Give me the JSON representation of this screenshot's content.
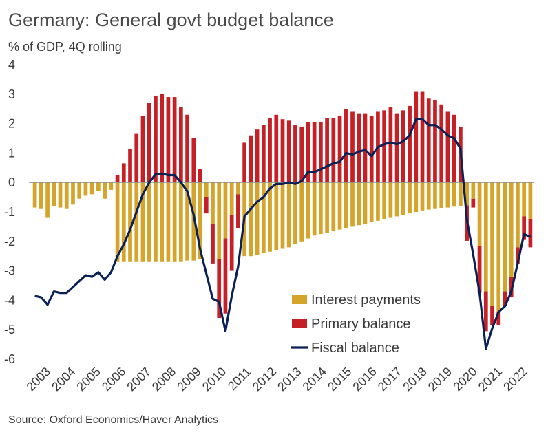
{
  "chart_data": {
    "type": "bar",
    "title": "Germany: General govt budget balance",
    "subtitle": "% of GDP, 4Q rolling",
    "source": "Source: Oxford Economics/Haver Analytics",
    "ylim": [
      -6,
      4
    ],
    "yticks": [
      "4",
      "3",
      "2",
      "1",
      "0",
      "-1",
      "-2",
      "-3",
      "-4",
      "-5",
      "-6"
    ],
    "ytick_values": [
      4,
      3,
      2,
      1,
      0,
      -1,
      -2,
      -3,
      -4,
      -5,
      -6
    ],
    "year_labels": [
      "2003",
      "2004",
      "2005",
      "2006",
      "2007",
      "2008",
      "2009",
      "2010",
      "2011",
      "2012",
      "2013",
      "2014",
      "2015",
      "2016",
      "2017",
      "2018",
      "2019",
      "2020",
      "2021",
      "2022"
    ],
    "legend": {
      "interest": "Interest payments",
      "primary": "Primary balance",
      "fiscal": "Fiscal balance"
    },
    "colors": {
      "interest": "#d4a52a",
      "primary": "#c42026",
      "fiscal": "#0b2155"
    },
    "series": [
      {
        "name": "Interest payments",
        "stack": "bar",
        "values": [
          -0.85,
          -0.9,
          -1.2,
          -0.8,
          -0.85,
          -0.9,
          -0.75,
          -0.55,
          -0.45,
          -0.4,
          -0.3,
          -0.55,
          -0.25,
          -2.7,
          -2.7,
          -2.7,
          -2.7,
          -2.7,
          -2.7,
          -2.7,
          -2.7,
          -2.7,
          -2.7,
          -2.7,
          -2.65,
          -2.65,
          -2.6,
          -0.5,
          -1.4,
          -2.6,
          -1.9,
          -1.1,
          -0.4,
          -2.5,
          -2.5,
          -2.45,
          -2.4,
          -2.35,
          -2.3,
          -2.25,
          -2.2,
          -2.1,
          -2.0,
          -1.9,
          -1.8,
          -1.75,
          -1.7,
          -1.65,
          -1.6,
          -1.55,
          -1.5,
          -1.45,
          -1.4,
          -1.35,
          -1.3,
          -1.25,
          -1.2,
          -1.15,
          -1.1,
          -1.05,
          -1.0,
          -0.95,
          -0.92,
          -0.9,
          -0.88,
          -0.85,
          -0.82,
          -0.8,
          -0.78,
          -0.55,
          -2.15,
          -3.7,
          -4.2,
          -4.4,
          -3.7,
          -3.2,
          -2.2,
          -1.15,
          -1.25
        ]
      },
      {
        "name": "Primary balance",
        "stack": "bar",
        "values": [
          0,
          0,
          0,
          0,
          0,
          0,
          0,
          0,
          0,
          0,
          0,
          0,
          0,
          0.25,
          0.65,
          1.15,
          1.65,
          2.25,
          2.7,
          2.95,
          3.0,
          2.9,
          2.9,
          2.55,
          2.3,
          1.5,
          0.45,
          -0.55,
          -1.35,
          -2.0,
          -2.55,
          -1.9,
          -1.15,
          1.35,
          1.6,
          1.8,
          1.95,
          2.2,
          2.3,
          2.15,
          2.1,
          1.95,
          1.9,
          2.05,
          2.05,
          2.05,
          2.2,
          2.2,
          2.25,
          2.5,
          2.4,
          2.35,
          2.35,
          2.25,
          2.4,
          2.45,
          2.55,
          2.35,
          2.45,
          2.6,
          3.1,
          3.1,
          2.85,
          2.8,
          2.65,
          2.4,
          2.3,
          1.9,
          -1.2,
          -0.3,
          -1.6,
          -1.35,
          -0.65,
          -0.45,
          -0.5,
          -0.7,
          -0.55,
          -0.8,
          -0.95
        ]
      },
      {
        "name": "Fiscal balance",
        "type": "line",
        "values": [
          -3.85,
          -3.9,
          -4.15,
          -3.7,
          -3.75,
          -3.75,
          -3.55,
          -3.35,
          -3.15,
          -3.2,
          -3.05,
          -3.3,
          -3.05,
          -2.5,
          -2.1,
          -1.6,
          -1.0,
          -0.4,
          0.0,
          0.28,
          0.3,
          0.25,
          0.25,
          0.0,
          -0.3,
          -1.1,
          -2.25,
          -3.1,
          -3.95,
          -4.05,
          -5.05,
          -3.85,
          -2.85,
          -1.15,
          -0.9,
          -0.65,
          -0.5,
          -0.2,
          -0.05,
          -0.05,
          0.0,
          -0.05,
          0.05,
          0.35,
          0.35,
          0.45,
          0.55,
          0.65,
          0.7,
          1.0,
          0.95,
          1.05,
          1.1,
          0.9,
          1.2,
          1.3,
          1.35,
          1.3,
          1.4,
          1.6,
          2.15,
          2.15,
          1.95,
          1.95,
          1.8,
          1.6,
          1.5,
          1.15,
          -1.25,
          -2.45,
          -3.75,
          -5.65,
          -4.95,
          -4.4,
          -4.2,
          -3.7,
          -2.75,
          -1.75,
          -1.85
        ]
      }
    ]
  }
}
